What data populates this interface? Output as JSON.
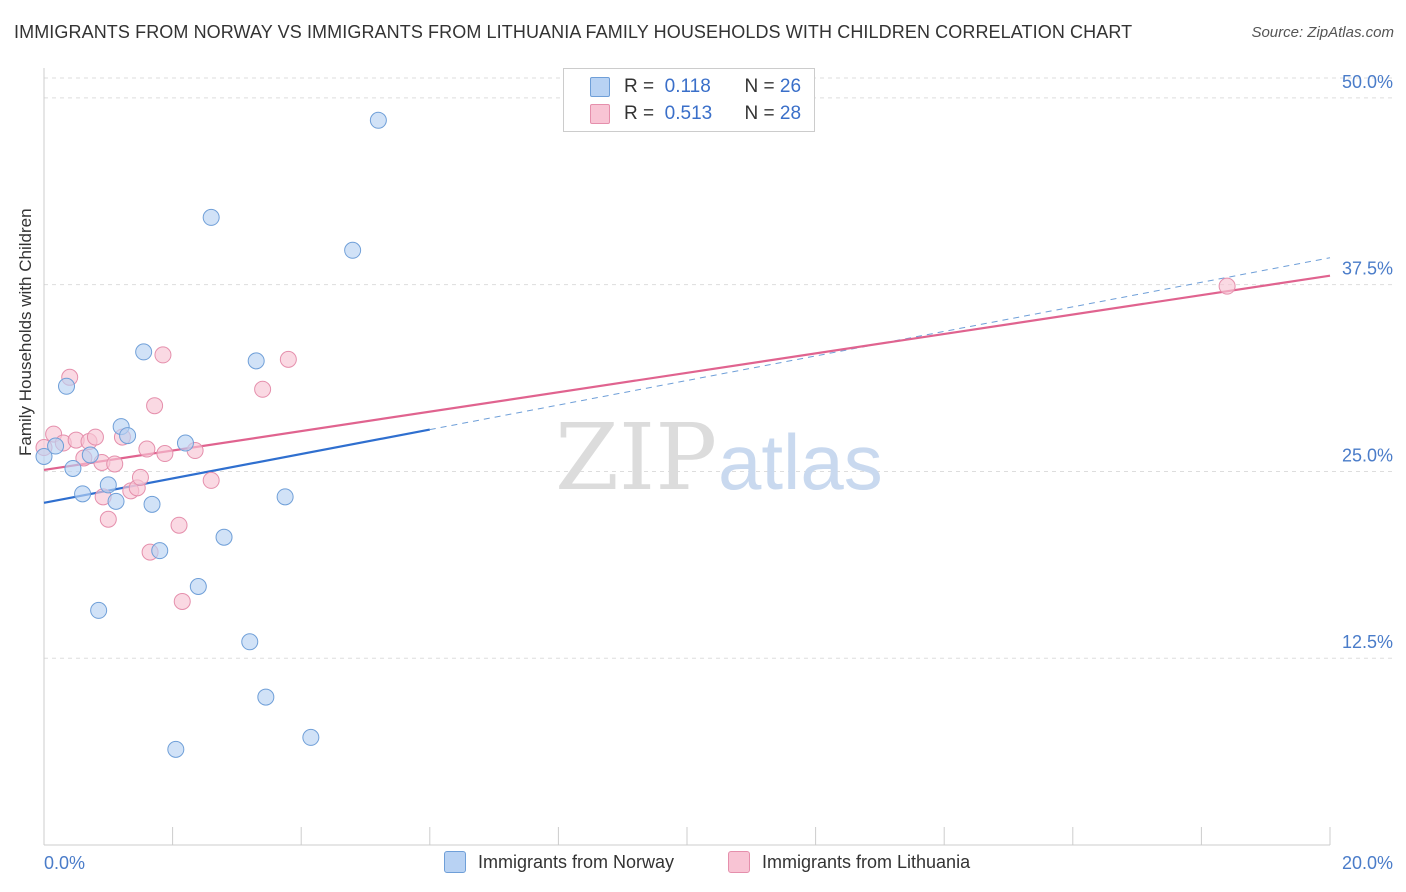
{
  "header": {
    "title": "IMMIGRANTS FROM NORWAY VS IMMIGRANTS FROM LITHUANIA FAMILY HOUSEHOLDS WITH CHILDREN CORRELATION CHART",
    "source": "Source: ZipAtlas.com"
  },
  "watermark": {
    "zip": "ZIP",
    "atlas": "atlas"
  },
  "legend": {
    "r_label": "R =",
    "n_label": "N =",
    "norway": {
      "r": "0.118",
      "n": "26"
    },
    "lithuania": {
      "r": "0.513",
      "n": "28"
    }
  },
  "colors": {
    "norway_fill": "#b8d2f3",
    "norway_stroke": "#6f9fd8",
    "norway_line": "#2f6fcf",
    "lithuania_fill": "#f8c4d4",
    "lithuania_stroke": "#e58fac",
    "lithuania_line": "#e0638f",
    "tick_label": "#4a7cc9",
    "grid": "#dddddd"
  },
  "chart_data": {
    "type": "scatter",
    "title": "IMMIGRANTS FROM NORWAY VS IMMIGRANTS FROM LITHUANIA FAMILY HOUSEHOLDS WITH CHILDREN CORRELATION CHART",
    "xlabel": "",
    "ylabel": "Family Households with Children",
    "xlim": [
      0,
      20
    ],
    "ylim": [
      0,
      52
    ],
    "x_tick_labels": {
      "min": "0.0%",
      "max": "20.0%"
    },
    "y_ticks": [
      {
        "value": 12.5,
        "label": "12.5%"
      },
      {
        "value": 25.0,
        "label": "25.0%"
      },
      {
        "value": 37.5,
        "label": "37.5%"
      },
      {
        "value": 50.0,
        "label": "50.0%"
      }
    ],
    "series": [
      {
        "name": "Immigrants from Norway",
        "r": 0.118,
        "n": 26,
        "points": [
          [
            0.0,
            26.0
          ],
          [
            0.18,
            26.7
          ],
          [
            0.35,
            30.7
          ],
          [
            0.45,
            25.2
          ],
          [
            0.6,
            23.5
          ],
          [
            0.72,
            26.1
          ],
          [
            0.85,
            15.7
          ],
          [
            1.0,
            24.1
          ],
          [
            1.12,
            23.0
          ],
          [
            1.2,
            28.0
          ],
          [
            1.3,
            27.4
          ],
          [
            1.55,
            33.0
          ],
          [
            1.68,
            22.8
          ],
          [
            1.8,
            19.7
          ],
          [
            2.2,
            26.9
          ],
          [
            2.4,
            17.3
          ],
          [
            2.6,
            42.0
          ],
          [
            2.8,
            20.6
          ],
          [
            3.2,
            13.6
          ],
          [
            3.3,
            32.4
          ],
          [
            3.45,
            9.9
          ],
          [
            2.05,
            6.4
          ],
          [
            3.75,
            23.3
          ],
          [
            4.15,
            7.2
          ],
          [
            4.8,
            39.8
          ],
          [
            5.2,
            48.5
          ]
        ],
        "trend": {
          "x_start": 0.0,
          "y_start": 22.9,
          "x_solid_end": 6.0,
          "y_solid_end": 27.8,
          "x_end": 20.0,
          "y_end": 39.3
        }
      },
      {
        "name": "Immigrants from Lithuania",
        "r": 0.513,
        "n": 28,
        "points": [
          [
            0.0,
            26.6
          ],
          [
            0.15,
            27.5
          ],
          [
            0.3,
            26.9
          ],
          [
            0.4,
            31.3
          ],
          [
            0.5,
            27.1
          ],
          [
            0.62,
            25.9
          ],
          [
            0.7,
            27.0
          ],
          [
            0.8,
            27.3
          ],
          [
            0.9,
            25.6
          ],
          [
            0.92,
            23.3
          ],
          [
            1.0,
            21.8
          ],
          [
            1.1,
            25.5
          ],
          [
            1.22,
            27.3
          ],
          [
            1.35,
            23.7
          ],
          [
            1.45,
            23.9
          ],
          [
            1.5,
            24.6
          ],
          [
            1.6,
            26.5
          ],
          [
            1.65,
            19.6
          ],
          [
            1.72,
            29.4
          ],
          [
            1.85,
            32.8
          ],
          [
            1.88,
            26.2
          ],
          [
            2.1,
            21.4
          ],
          [
            2.15,
            16.3
          ],
          [
            2.35,
            26.4
          ],
          [
            2.6,
            24.4
          ],
          [
            3.4,
            30.5
          ],
          [
            3.8,
            32.5
          ],
          [
            18.4,
            37.4
          ]
        ],
        "trend": {
          "x_start": 0.0,
          "y_start": 25.1,
          "x_end": 20.0,
          "y_end": 38.1
        }
      }
    ]
  }
}
